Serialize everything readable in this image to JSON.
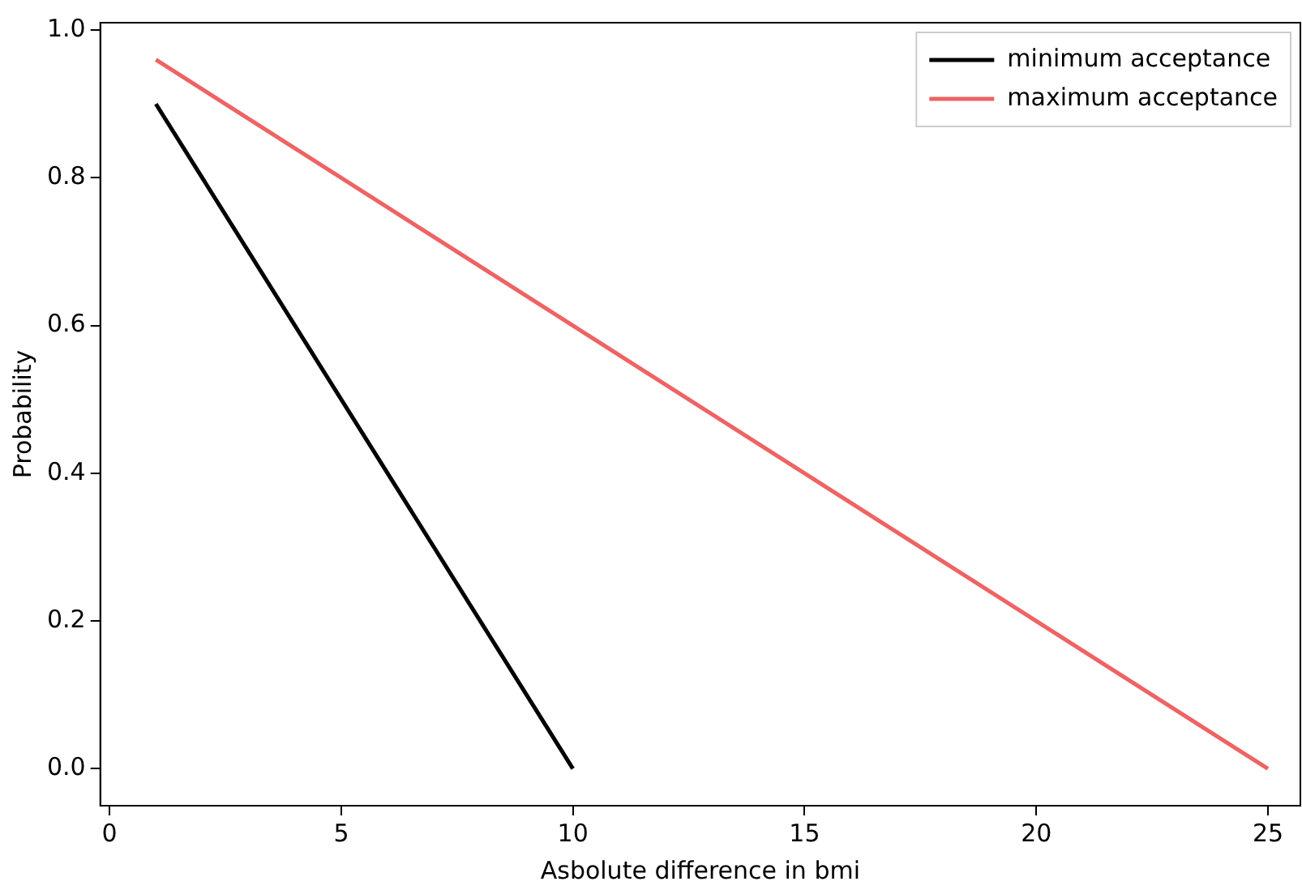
{
  "chart_data": {
    "type": "line",
    "xlabel": "Asbolute difference in bmi",
    "ylabel": "Probability",
    "series": [
      {
        "name": "minimum acceptance",
        "color": "#000000",
        "x": [
          1,
          10
        ],
        "values": [
          0.9,
          0
        ]
      },
      {
        "name": "maximum acceptance",
        "color": "#ee6363",
        "x": [
          1,
          25
        ],
        "values": [
          0.96,
          0
        ]
      }
    ],
    "xlim": [
      -0.2,
      25.7
    ],
    "xticks": [
      0,
      5,
      10,
      15,
      20,
      25
    ],
    "ylim": [
      -0.05,
      1.01
    ],
    "yticks": [
      {
        "value": 0,
        "label": "0.0"
      },
      {
        "value": 0.2,
        "label": "0.2"
      },
      {
        "value": 0.4,
        "label": "0.4"
      },
      {
        "value": 0.6,
        "label": "0.6"
      },
      {
        "value": 0.8,
        "label": "0.8"
      },
      {
        "value": 1,
        "label": "1.0"
      }
    ],
    "grid": false,
    "legend": "top right",
    "marker": "none",
    "line_style": "solid"
  }
}
